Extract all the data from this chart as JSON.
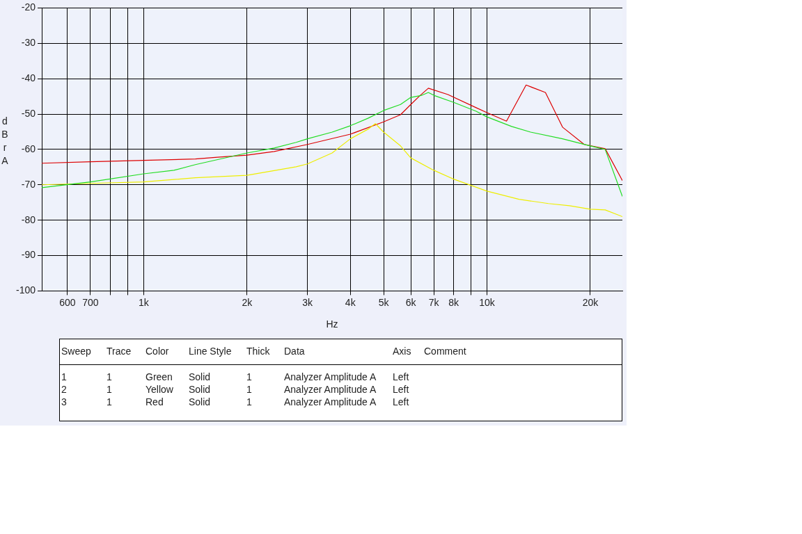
{
  "chart_data": {
    "type": "line",
    "xlabel": "Hz",
    "ylabel": "dBr A",
    "log": "x",
    "grid": true,
    "legend": false,
    "marker": "none",
    "line_style": "solid",
    "xlim": [
      505,
      24800
    ],
    "ylim": [
      -100,
      -20
    ],
    "xticks": [
      {
        "value": 600,
        "label": "600"
      },
      {
        "value": 700,
        "label": "700"
      },
      {
        "value": 800,
        "label": null
      },
      {
        "value": 900,
        "label": null
      },
      {
        "value": 1000,
        "label": "1k"
      },
      {
        "value": 2000,
        "label": "2k"
      },
      {
        "value": 3000,
        "label": "3k"
      },
      {
        "value": 4000,
        "label": "4k"
      },
      {
        "value": 5000,
        "label": "5k"
      },
      {
        "value": 6000,
        "label": "6k"
      },
      {
        "value": 7000,
        "label": "7k"
      },
      {
        "value": 8000,
        "label": "8k"
      },
      {
        "value": 9000,
        "label": null
      },
      {
        "value": 10000,
        "label": "10k"
      },
      {
        "value": 20000,
        "label": "20k"
      }
    ],
    "yticks": [
      -100,
      -90,
      -80,
      -70,
      -60,
      -50,
      -40,
      -30,
      -20
    ],
    "series": [
      {
        "color": "#22dd22",
        "x": [
          505,
          700,
          1000,
          1225,
          1415,
          2000,
          2400,
          2780,
          3000,
          3540,
          4000,
          4500,
          5000,
          5600,
          6000,
          6460,
          6750,
          7000,
          8000,
          9300,
          10000,
          11800,
          13400,
          16600,
          20000,
          22100,
          24800
        ],
        "values": [
          -70.8,
          -69.2,
          -66.9,
          -65.9,
          -64.3,
          -61,
          -59.6,
          -58,
          -57,
          -55.1,
          -53.3,
          -51.2,
          -49,
          -47.3,
          -45.3,
          -44.7,
          -43.9,
          -44.7,
          -46.7,
          -49.2,
          -50.8,
          -53.5,
          -55.1,
          -57,
          -59,
          -60,
          -73.3
        ]
      },
      {
        "color": "#eeee00",
        "x": [
          505,
          700,
          1000,
          1415,
          2000,
          2780,
          3000,
          3540,
          4000,
          4500,
          4730,
          5000,
          5600,
          6000,
          7000,
          8000,
          10000,
          12400,
          15100,
          17400,
          20000,
          22100,
          24800
        ],
        "values": [
          -70,
          -69.6,
          -69.2,
          -68,
          -67.3,
          -64.9,
          -64.1,
          -61,
          -57,
          -54.3,
          -52.7,
          -55.1,
          -59,
          -62.4,
          -65.9,
          -68.4,
          -71.8,
          -74.1,
          -75.3,
          -75.9,
          -76.9,
          -77.1,
          -79
        ]
      },
      {
        "color": "#dd0000",
        "x": [
          505,
          700,
          1000,
          1415,
          1640,
          2000,
          2400,
          3000,
          4000,
          5000,
          5600,
          6000,
          6360,
          6750,
          7700,
          9300,
          10000,
          11400,
          13000,
          14800,
          16600,
          19200,
          22100,
          24800
        ],
        "values": [
          -63.9,
          -63.5,
          -63.1,
          -62.7,
          -62.2,
          -61.6,
          -60.6,
          -58.6,
          -55.7,
          -52.2,
          -50.2,
          -47.3,
          -44.9,
          -42.7,
          -44.5,
          -48.2,
          -49.6,
          -52,
          -41.8,
          -43.9,
          -53.7,
          -58.6,
          -59.8,
          -68.8
        ]
      }
    ],
    "annotations": [
      "Sweep",
      "Trace",
      "Color",
      "Line Style",
      "Thick",
      "Data",
      "Axis",
      "Comment",
      "1",
      "1",
      "Green",
      "Solid",
      "1",
      "Analyzer Amplitude A",
      "Left",
      "2",
      "1",
      "Yellow",
      "Solid",
      "1",
      "Analyzer Amplitude A",
      "Left",
      "3",
      "1",
      "Red",
      "Solid",
      "1",
      "Analyzer Amplitude A",
      "Left"
    ]
  }
}
